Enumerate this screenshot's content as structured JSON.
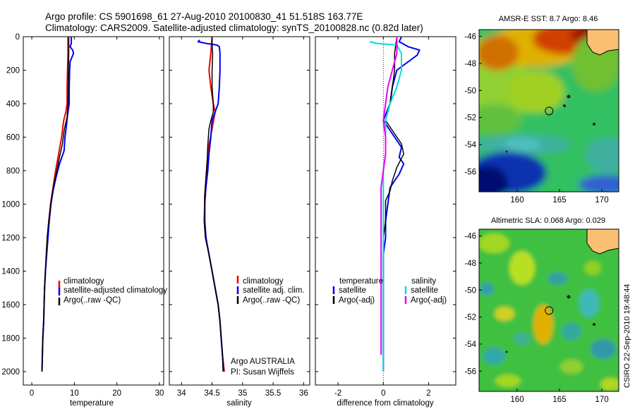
{
  "header": {
    "title_line1": "Argo profile: CS 5901698_61 27-Aug-2010 20100830_41 51.518S 163.77E",
    "title_line2": "Climatology: CARS2009. Satellite-adjusted climatology: synTS_20100828.nc (0.82d later)"
  },
  "side_stamp": "CSIRO 22-Sep-2010 19:48:44",
  "colors": {
    "climatology": "#ee0000",
    "satellite": "#0000ee",
    "argo": "#000000",
    "argo_adj": "#ee00ee",
    "sat_salinity": "#00dddd"
  },
  "chart_data": [
    {
      "id": "temperature",
      "type": "line",
      "xlabel": "temperature",
      "ylabel": "",
      "xlim": [
        -2,
        31
      ],
      "ylim": [
        2080,
        0
      ],
      "xticks": [
        0,
        10,
        20,
        30
      ],
      "yticks": [
        0,
        200,
        400,
        600,
        800,
        1000,
        1200,
        1400,
        1600,
        1800,
        2000
      ],
      "legend": [
        "climatology",
        "satellite-adjusted climatology",
        "Argo(..raw -QC)"
      ],
      "series": [
        {
          "name": "climatology",
          "color": "#ee0000",
          "width": 2,
          "points": [
            [
              8.5,
              0
            ],
            [
              8.5,
              50
            ],
            [
              8.5,
              100
            ],
            [
              8.4,
              200
            ],
            [
              8.3,
              300
            ],
            [
              8.3,
              400
            ],
            [
              8.0,
              450
            ],
            [
              7.5,
              500
            ],
            [
              7.0,
              600
            ],
            [
              6.3,
              700
            ],
            [
              5.6,
              800
            ],
            [
              5.0,
              900
            ],
            [
              4.4,
              1000
            ],
            [
              4.0,
              1100
            ],
            [
              3.7,
              1200
            ],
            [
              3.4,
              1300
            ],
            [
              3.2,
              1400
            ],
            [
              3.0,
              1500
            ],
            [
              2.9,
              1600
            ],
            [
              2.8,
              1700
            ],
            [
              2.6,
              1800
            ],
            [
              2.5,
              1900
            ],
            [
              2.4,
              2000
            ]
          ]
        },
        {
          "name": "satellite-adjusted climatology",
          "color": "#0000ee",
          "width": 2,
          "points": [
            [
              9.3,
              0
            ],
            [
              9.3,
              40
            ],
            [
              9.0,
              60
            ],
            [
              9.6,
              80
            ],
            [
              9.8,
              100
            ],
            [
              9.0,
              150
            ],
            [
              8.9,
              200
            ],
            [
              8.8,
              300
            ],
            [
              8.8,
              400
            ],
            [
              8.4,
              470
            ],
            [
              8.2,
              520
            ],
            [
              7.8,
              600
            ],
            [
              7.6,
              680
            ],
            [
              6.5,
              760
            ],
            [
              5.7,
              840
            ],
            [
              5.0,
              920
            ],
            [
              4.5,
              1000
            ],
            [
              4.1,
              1100
            ],
            [
              3.8,
              1200
            ],
            [
              3.5,
              1300
            ],
            [
              3.2,
              1400
            ],
            [
              3.0,
              1500
            ],
            [
              2.9,
              1600
            ],
            [
              2.8,
              1700
            ],
            [
              2.6,
              1800
            ],
            [
              2.5,
              1900
            ],
            [
              2.4,
              2000
            ]
          ]
        },
        {
          "name": "Argo(..raw -QC)",
          "color": "#000000",
          "width": 1.5,
          "points": [
            [
              8.7,
              0
            ],
            [
              8.7,
              100
            ],
            [
              8.6,
              200
            ],
            [
              8.6,
              300
            ],
            [
              8.5,
              400
            ],
            [
              8.3,
              480
            ],
            [
              7.6,
              560
            ],
            [
              7.2,
              640
            ],
            [
              6.5,
              720
            ],
            [
              5.9,
              800
            ],
            [
              5.2,
              880
            ],
            [
              4.7,
              960
            ],
            [
              4.3,
              1040
            ],
            [
              3.9,
              1120
            ],
            [
              3.6,
              1200
            ],
            [
              3.4,
              1300
            ],
            [
              3.2,
              1400
            ],
            [
              3.0,
              1500
            ],
            [
              2.9,
              1600
            ],
            [
              2.8,
              1700
            ],
            [
              2.6,
              1800
            ],
            [
              2.5,
              1900
            ],
            [
              2.4,
              2000
            ]
          ]
        }
      ]
    },
    {
      "id": "salinity",
      "type": "line",
      "xlabel": "salinity",
      "ylabel": "",
      "xlim": [
        33.8,
        36.1
      ],
      "ylim": [
        2080,
        0
      ],
      "xticks": [
        34,
        34.5,
        35,
        35.5,
        36
      ],
      "legend": [
        "climatology",
        "satellite adj. clim.",
        "Argo(..raw -QC)"
      ],
      "annotations": [
        "Argo AUSTRALIA",
        "PI: Susan Wijffels"
      ],
      "series": [
        {
          "name": "climatology",
          "color": "#ee0000",
          "width": 2,
          "points": [
            [
              34.5,
              0
            ],
            [
              34.48,
              100
            ],
            [
              34.45,
              200
            ],
            [
              34.48,
              300
            ],
            [
              34.52,
              400
            ],
            [
              34.55,
              450
            ],
            [
              34.5,
              550
            ],
            [
              34.45,
              650
            ],
            [
              34.42,
              750
            ],
            [
              34.4,
              850
            ],
            [
              34.38,
              950
            ],
            [
              34.38,
              1100
            ],
            [
              34.4,
              1200
            ],
            [
              34.45,
              1300
            ],
            [
              34.5,
              1400
            ],
            [
              34.55,
              1500
            ],
            [
              34.6,
              1600
            ],
            [
              34.63,
              1700
            ],
            [
              34.65,
              1800
            ],
            [
              34.67,
              1900
            ],
            [
              34.7,
              2000
            ]
          ]
        },
        {
          "name": "satellite adj. clim.",
          "color": "#0000ee",
          "width": 2,
          "points": [
            [
              34.3,
              20
            ],
            [
              34.27,
              30
            ],
            [
              34.4,
              40
            ],
            [
              34.58,
              50
            ],
            [
              34.62,
              60
            ],
            [
              34.63,
              100
            ],
            [
              34.63,
              200
            ],
            [
              34.62,
              300
            ],
            [
              34.6,
              400
            ],
            [
              34.55,
              450
            ],
            [
              34.5,
              500
            ],
            [
              34.48,
              600
            ],
            [
              34.45,
              700
            ],
            [
              34.43,
              800
            ],
            [
              34.4,
              900
            ],
            [
              34.38,
              1000
            ],
            [
              34.38,
              1100
            ],
            [
              34.4,
              1200
            ],
            [
              34.45,
              1300
            ],
            [
              34.5,
              1400
            ],
            [
              34.55,
              1500
            ],
            [
              34.6,
              1600
            ],
            [
              34.63,
              1700
            ],
            [
              34.65,
              1800
            ],
            [
              34.67,
              1900
            ],
            [
              34.69,
              2000
            ]
          ]
        },
        {
          "name": "Argo(..raw -QC)",
          "color": "#000000",
          "width": 1.5,
          "points": [
            [
              34.5,
              0
            ],
            [
              34.5,
              50
            ],
            [
              34.51,
              100
            ],
            [
              34.5,
              200
            ],
            [
              34.5,
              300
            ],
            [
              34.52,
              400
            ],
            [
              34.52,
              450
            ],
            [
              34.48,
              500
            ],
            [
              34.45,
              550
            ],
            [
              34.43,
              650
            ],
            [
              34.42,
              750
            ],
            [
              34.4,
              850
            ],
            [
              34.38,
              950
            ],
            [
              34.37,
              1100
            ],
            [
              34.39,
              1200
            ],
            [
              34.45,
              1300
            ],
            [
              34.5,
              1400
            ],
            [
              34.55,
              1500
            ],
            [
              34.6,
              1600
            ],
            [
              34.63,
              1700
            ],
            [
              34.65,
              1800
            ],
            [
              34.67,
              1900
            ],
            [
              34.68,
              2000
            ]
          ]
        }
      ]
    },
    {
      "id": "difference",
      "type": "line",
      "xlabel": "difference from climatology",
      "ylabel": "",
      "xlim": [
        -3,
        3.2
      ],
      "ylim": [
        2080,
        0
      ],
      "xticks": [
        -2,
        0,
        2
      ],
      "legend_groups": [
        {
          "title": "temperature",
          "entries": [
            "satellite",
            "Argo(-adj)"
          ]
        },
        {
          "title": "salinity",
          "entries": [
            "satellite",
            "Argo(-adj)"
          ]
        }
      ],
      "series": [
        {
          "name": "temperature satellite",
          "color": "#0000ee",
          "width": 2,
          "points": [
            [
              0.8,
              0
            ],
            [
              0.7,
              30
            ],
            [
              1.1,
              60
            ],
            [
              1.6,
              80
            ],
            [
              1.5,
              110
            ],
            [
              0.6,
              200
            ],
            [
              0.4,
              300
            ],
            [
              0.3,
              400
            ],
            [
              0.0,
              500
            ],
            [
              0.3,
              560
            ],
            [
              0.8,
              660
            ],
            [
              0.7,
              720
            ],
            [
              0.9,
              760
            ],
            [
              0.7,
              820
            ],
            [
              0.3,
              900
            ],
            [
              0.2,
              1000
            ],
            [
              0.1,
              1100
            ],
            [
              0.1,
              1200
            ],
            [
              0.0,
              1300
            ],
            [
              0.0,
              1500
            ],
            [
              0.0,
              1700
            ],
            [
              0.0,
              1900
            ],
            [
              0.0,
              2000
            ]
          ]
        },
        {
          "name": "temperature Argo(-adj)",
          "color": "#000000",
          "width": 1.5,
          "points": [
            [
              0.6,
              0
            ],
            [
              0.5,
              100
            ],
            [
              0.5,
              200
            ],
            [
              0.4,
              300
            ],
            [
              0.3,
              400
            ],
            [
              0.1,
              500
            ],
            [
              0.4,
              560
            ],
            [
              0.8,
              640
            ],
            [
              0.9,
              700
            ],
            [
              0.6,
              780
            ],
            [
              0.4,
              860
            ],
            [
              0.3,
              920
            ],
            [
              0.1,
              980
            ],
            [
              0.1,
              1100
            ],
            [
              0.0,
              1200
            ],
            [
              0.0,
              1400
            ],
            [
              0.0,
              1600
            ],
            [
              0.0,
              1800
            ],
            [
              0.0,
              2000
            ]
          ]
        },
        {
          "name": "salinity satellite",
          "color": "#00dddd",
          "width": 2,
          "points": [
            [
              -0.6,
              30
            ],
            [
              -0.3,
              40
            ],
            [
              0.6,
              50
            ],
            [
              0.8,
              100
            ],
            [
              0.8,
              200
            ],
            [
              0.6,
              300
            ],
            [
              0.3,
              400
            ],
            [
              0.1,
              500
            ],
            [
              0.1,
              600
            ],
            [
              0.1,
              700
            ],
            [
              0.0,
              800
            ],
            [
              0.0,
              1000
            ],
            [
              0.0,
              1200
            ],
            [
              0.0,
              1400
            ],
            [
              0.0,
              1600
            ],
            [
              0.0,
              1800
            ],
            [
              0.0,
              2000
            ]
          ]
        },
        {
          "name": "salinity Argo(-adj)",
          "color": "#ee00ee",
          "width": 2,
          "points": [
            [
              0.6,
              0
            ],
            [
              0.6,
              100
            ],
            [
              0.4,
              200
            ],
            [
              0.2,
              300
            ],
            [
              0.1,
              400
            ],
            [
              0.0,
              500
            ],
            [
              0.1,
              600
            ],
            [
              0.1,
              700
            ],
            [
              0.0,
              800
            ],
            [
              -0.1,
              900
            ],
            [
              -0.1,
              1000
            ],
            [
              -0.1,
              1200
            ],
            [
              -0.1,
              1400
            ],
            [
              -0.1,
              1600
            ],
            [
              -0.1,
              1800
            ],
            [
              -0.1,
              1900
            ]
          ]
        }
      ]
    },
    {
      "id": "sst_map",
      "type": "heatmap",
      "title": "AMSR-E SST: 8.7 Argo: 8.46",
      "xlim": [
        155.5,
        172
      ],
      "ylim": [
        -57.5,
        -45.5
      ],
      "xticks": [
        160,
        165,
        170
      ],
      "yticks": [
        -46,
        -48,
        -50,
        -52,
        -54,
        -56
      ],
      "marker": {
        "lon": 163.77,
        "lat": -51.518
      }
    },
    {
      "id": "sla_map",
      "type": "heatmap",
      "title": "Altimetric SLA: 0.068 Argo: 0.029",
      "xlim": [
        155.5,
        172
      ],
      "ylim": [
        -57.5,
        -45.5
      ],
      "xticks": [
        160,
        165,
        170
      ],
      "yticks": [
        -46,
        -48,
        -50,
        -52,
        -54,
        -56
      ],
      "marker": {
        "lon": 163.77,
        "lat": -51.518
      }
    }
  ]
}
